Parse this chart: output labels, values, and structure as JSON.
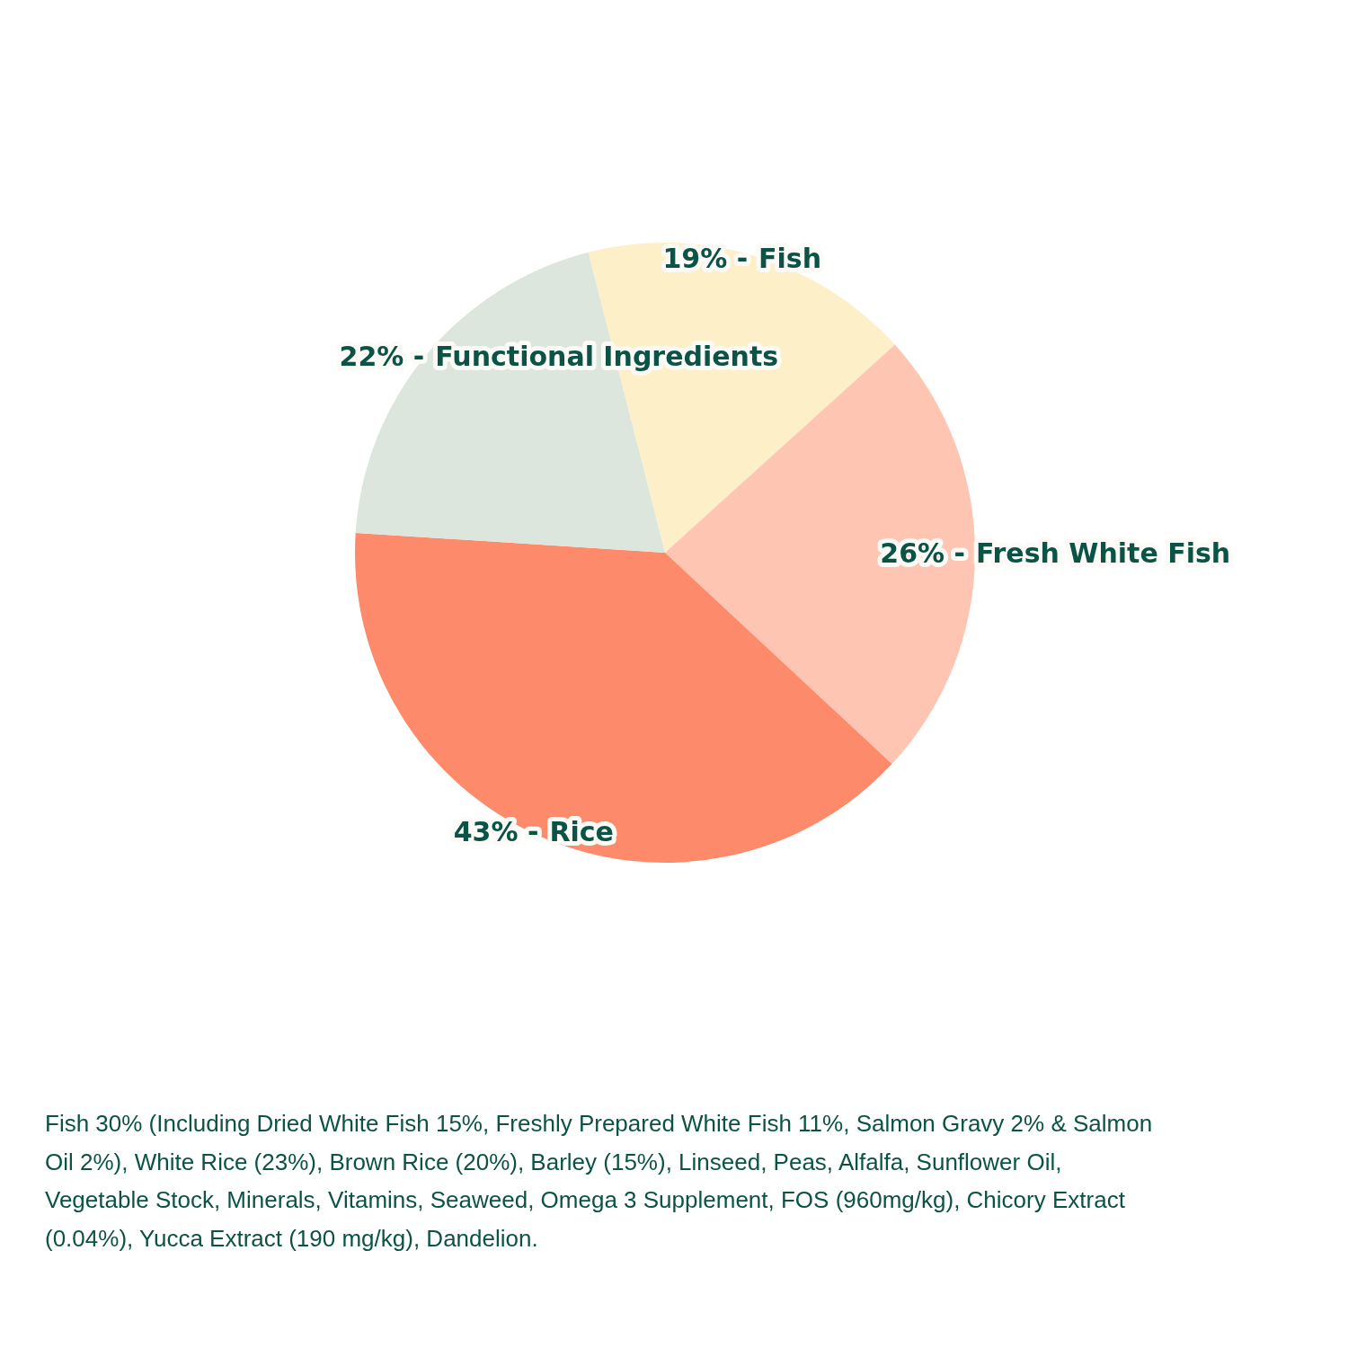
{
  "chart_data": {
    "type": "pie",
    "categories": [
      "Fish",
      "Fresh White Fish",
      "Rice",
      "Functional Ingredients"
    ],
    "values": [
      19,
      26,
      43,
      22
    ],
    "colors": [
      "#fdf0c8",
      "#fec6b2",
      "#fe8a6c",
      "#dde6dc"
    ],
    "value_labels": [
      "19% -",
      "26% -",
      "43% -",
      "22% -"
    ],
    "legend": false,
    "annotations": [
      "Fish 30% (Including Dried White Fish 15%, Freshly Prepared White Fish 11%, Salmon Gravy 2% & Salmon Oil 2%), White Rice (23%), Brown Rice (20%), Barley (15%), Linseed, Peas, Alfalfa, Sunflower Oil, Vegetable Stock, Minerals, Vitamins, Seaweed, Omega 3 Supplement, FOS (960mg/kg), Chicory Extract (0.04%), Yucca Extract (190 mg/kg), Dandelion."
    ]
  }
}
